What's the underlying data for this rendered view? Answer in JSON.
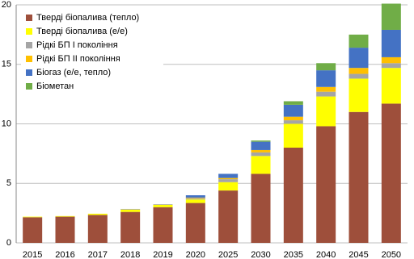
{
  "chart_data": {
    "type": "bar",
    "stacked": true,
    "categories": [
      "2015",
      "2016",
      "2017",
      "2018",
      "2019",
      "2020",
      "2025",
      "2030",
      "2035",
      "2040",
      "2045",
      "2050"
    ],
    "series": [
      {
        "name": "Тверді біопалива (тепло)",
        "color": "#9e4f3b",
        "values": [
          2.15,
          2.2,
          2.35,
          2.6,
          3.0,
          3.35,
          4.4,
          5.8,
          8.0,
          9.8,
          11.0,
          11.7
        ]
      },
      {
        "name": "Тверді біопалива (е/е)",
        "color": "#ffff00",
        "values": [
          0.05,
          0.05,
          0.1,
          0.2,
          0.2,
          0.3,
          0.7,
          1.5,
          2.0,
          2.5,
          2.8,
          3.0
        ]
      },
      {
        "name": "Рідкі БП І покоління",
        "color": "#a5a5a5",
        "values": [
          0,
          0,
          0,
          0.05,
          0.05,
          0.1,
          0.25,
          0.3,
          0.3,
          0.4,
          0.4,
          0.4
        ]
      },
      {
        "name": "Рідкі БП ІІ покоління",
        "color": "#ffc000",
        "values": [
          0,
          0,
          0,
          0,
          0,
          0.05,
          0.1,
          0.2,
          0.3,
          0.4,
          0.5,
          0.5
        ]
      },
      {
        "name": "Біогаз (е/е, тепло)",
        "color": "#4472c4",
        "values": [
          0,
          0,
          0,
          0,
          0,
          0.2,
          0.35,
          0.7,
          1.0,
          1.4,
          1.7,
          2.3
        ]
      },
      {
        "name": "Біометан",
        "color": "#70ad47",
        "values": [
          0,
          0,
          0,
          0,
          0,
          0,
          0,
          0.1,
          0.3,
          0.6,
          1.1,
          2.2
        ]
      }
    ],
    "ylim": [
      0,
      20
    ],
    "yticks": [
      0,
      5,
      10,
      15,
      20
    ],
    "grid": true,
    "legend": "upper left"
  }
}
